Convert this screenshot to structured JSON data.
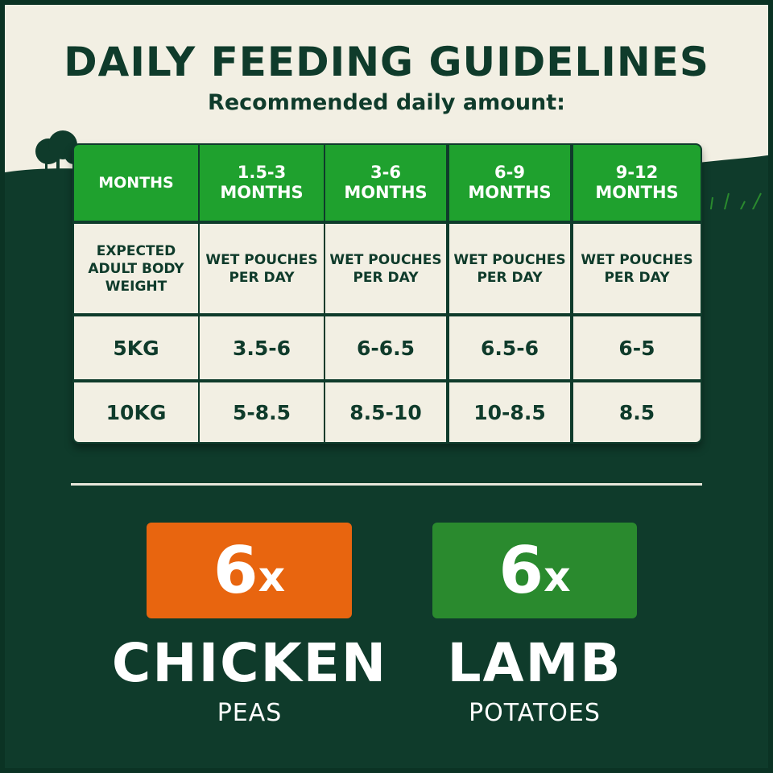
{
  "header": {
    "title": "DAILY FEEDING GUIDELINES",
    "subtitle": "Recommended daily amount:"
  },
  "table": {
    "columns": [
      "MONTHS",
      "1.5-3 MONTHS",
      "3-6 MONTHS",
      "6-9 MONTHS",
      "9-12 MONTHS"
    ],
    "subheader": [
      "EXPECTED ADULT BODY WEIGHT",
      "WET POUCHES PER DAY",
      "WET POUCHES PER DAY",
      "WET POUCHES PER DAY",
      "WET POUCHES PER DAY"
    ],
    "rows": [
      [
        "5KG",
        "3.5-6",
        "6-6.5",
        "6.5-6",
        "6-5"
      ],
      [
        "10KG",
        "5-8.5",
        "8.5-10",
        "10-8.5",
        "8.5"
      ]
    ]
  },
  "products": [
    {
      "count": "6",
      "unit": "x",
      "name": "CHICKEN",
      "sub": "PEAS",
      "color": "#e8650f"
    },
    {
      "count": "6",
      "unit": "x",
      "name": "LAMB",
      "sub": "POTATOES",
      "color": "#2a8a2e"
    }
  ],
  "colors": {
    "background": "#0f3b2b",
    "cream": "#f2efe3",
    "header_green": "#1fa12e"
  }
}
